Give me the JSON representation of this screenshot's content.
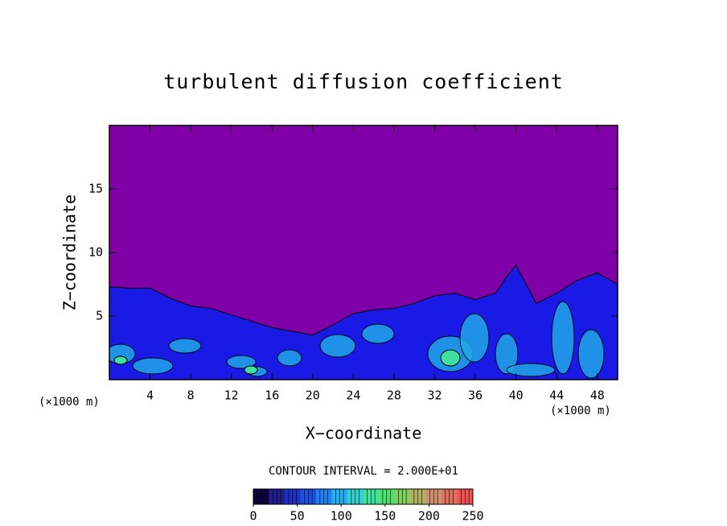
{
  "chart_data": {
    "type": "contour",
    "title": "turbulent diffusion coefficient",
    "xlabel": "X−coordinate",
    "ylabel": "Z−coordinate",
    "x_unit": "(×1000 m)",
    "y_unit": "(×1000 m)",
    "contour_note": "CONTOUR INTERVAL = 2.000E+01",
    "xlim": [
      0,
      50
    ],
    "ylim": [
      0,
      20
    ],
    "xticks": [
      4,
      8,
      12,
      16,
      20,
      24,
      28,
      32,
      36,
      40,
      44,
      48
    ],
    "yticks": [
      5,
      10,
      15
    ],
    "background_color": "#8000a8",
    "layer_color": "#1a1ae6",
    "layer_top": {
      "x": [
        0,
        2,
        4,
        6,
        8,
        10,
        12,
        14,
        16,
        18,
        20,
        22,
        24,
        26,
        28,
        30,
        32,
        34,
        36,
        38,
        39,
        40,
        41,
        42,
        44,
        46,
        48,
        50
      ],
      "z": [
        7.3,
        7.2,
        7.2,
        6.4,
        5.8,
        5.6,
        5.1,
        4.6,
        4.1,
        3.8,
        3.5,
        4.3,
        5.2,
        5.5,
        5.6,
        6.0,
        6.6,
        6.8,
        6.3,
        6.8,
        8.0,
        9.0,
        7.5,
        6.0,
        6.8,
        7.8,
        8.4,
        7.5
      ]
    },
    "colorbar": {
      "clim": [
        0,
        250
      ],
      "ticks": [
        0,
        50,
        100,
        150,
        200,
        250
      ],
      "colors": [
        "#100040",
        "#20208a",
        "#2030c0",
        "#2050e0",
        "#2080f0",
        "#20b0f0",
        "#30d0d0",
        "#40e0a0",
        "#50e070",
        "#80d060",
        "#b0b060",
        "#d09070",
        "#e07060",
        "#f05050"
      ]
    }
  }
}
